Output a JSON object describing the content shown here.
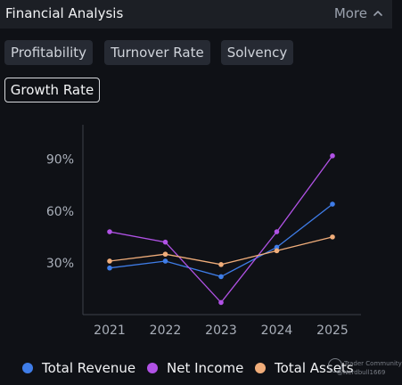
{
  "header": {
    "title": "Financial Analysis",
    "more_label": "More"
  },
  "tabs": [
    {
      "label": "Profitability"
    },
    {
      "label": "Turnover Rate"
    },
    {
      "label": "Solvency"
    },
    {
      "label": "Growth Rate",
      "active": true
    }
  ],
  "chart_data": {
    "type": "line",
    "x": [
      "2021",
      "2022",
      "2023",
      "2024",
      "2025"
    ],
    "y_ticks": [
      "30%",
      "60%",
      "90%"
    ],
    "ylim": [
      0,
      1.1
    ],
    "series": [
      {
        "name": "Total Revenue",
        "color": "#3f7de8",
        "values": [
          0.27,
          0.31,
          0.22,
          0.39,
          0.64
        ]
      },
      {
        "name": "Net Income",
        "color": "#b152e6",
        "values": [
          0.48,
          0.42,
          0.07,
          0.48,
          0.92
        ]
      },
      {
        "name": "Total Assets",
        "color": "#f0ad7a",
        "values": [
          0.31,
          0.35,
          0.29,
          0.37,
          0.45
        ]
      }
    ]
  },
  "watermark": {
    "line1": "Trader Community",
    "line2": "@Nerdbull1669"
  }
}
